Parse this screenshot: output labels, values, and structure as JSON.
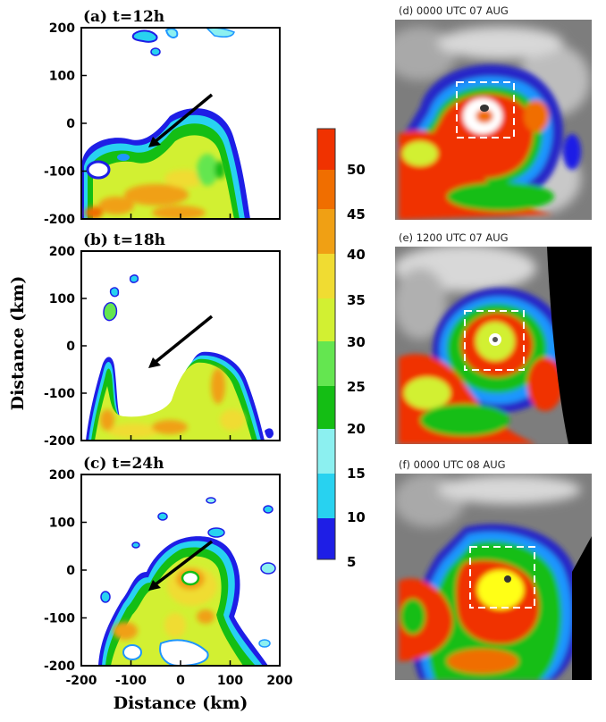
{
  "panel_labels": [
    "(a) t=12h",
    "(b) t=18h",
    "(c) t=24h"
  ],
  "y_ticks": [
    "200",
    "100",
    "0",
    "-100",
    "-200"
  ],
  "x_ticks": [
    "-200",
    "-100",
    "0",
    "100",
    "200"
  ],
  "ylabel": "Distance (km)",
  "xlabel": "Distance (km)",
  "colorbar": {
    "labels": [
      "5",
      "10",
      "15",
      "20",
      "25",
      "30",
      "35",
      "40",
      "45",
      "50"
    ],
    "colors": [
      "#1e1ee6",
      "#1e96ff",
      "#28d2f0",
      "#8cf0f0",
      "#14be14",
      "#64e650",
      "#d2f032",
      "#f0dc32",
      "#f0a014",
      "#f06e00",
      "#f03200"
    ]
  },
  "satellite_labels": [
    "(d) 0000 UTC 07 AUG",
    "(e) 1200 UTC 07 AUG",
    "(f) 0000 UTC 08 AUG"
  ],
  "chart_data": {
    "type": "heatmap",
    "title": "",
    "xlabel": "Distance (km)",
    "ylabel": "Distance (km)",
    "xlim": [
      -200,
      200
    ],
    "ylim": [
      -200,
      200
    ],
    "colorbar_levels": [
      5,
      10,
      15,
      20,
      25,
      30,
      35,
      40,
      45,
      50
    ],
    "panels": [
      {
        "label": "(a) t=12h",
        "arrow": {
          "from": [
            70,
            70
          ],
          "to": [
            -65,
            -45
          ]
        }
      },
      {
        "label": "(b) t=18h",
        "arrow": {
          "from": [
            70,
            70
          ],
          "to": [
            -65,
            -45
          ]
        }
      },
      {
        "label": "(c) t=24h",
        "arrow": {
          "from": [
            70,
            70
          ],
          "to": [
            -65,
            -45
          ]
        }
      }
    ]
  }
}
